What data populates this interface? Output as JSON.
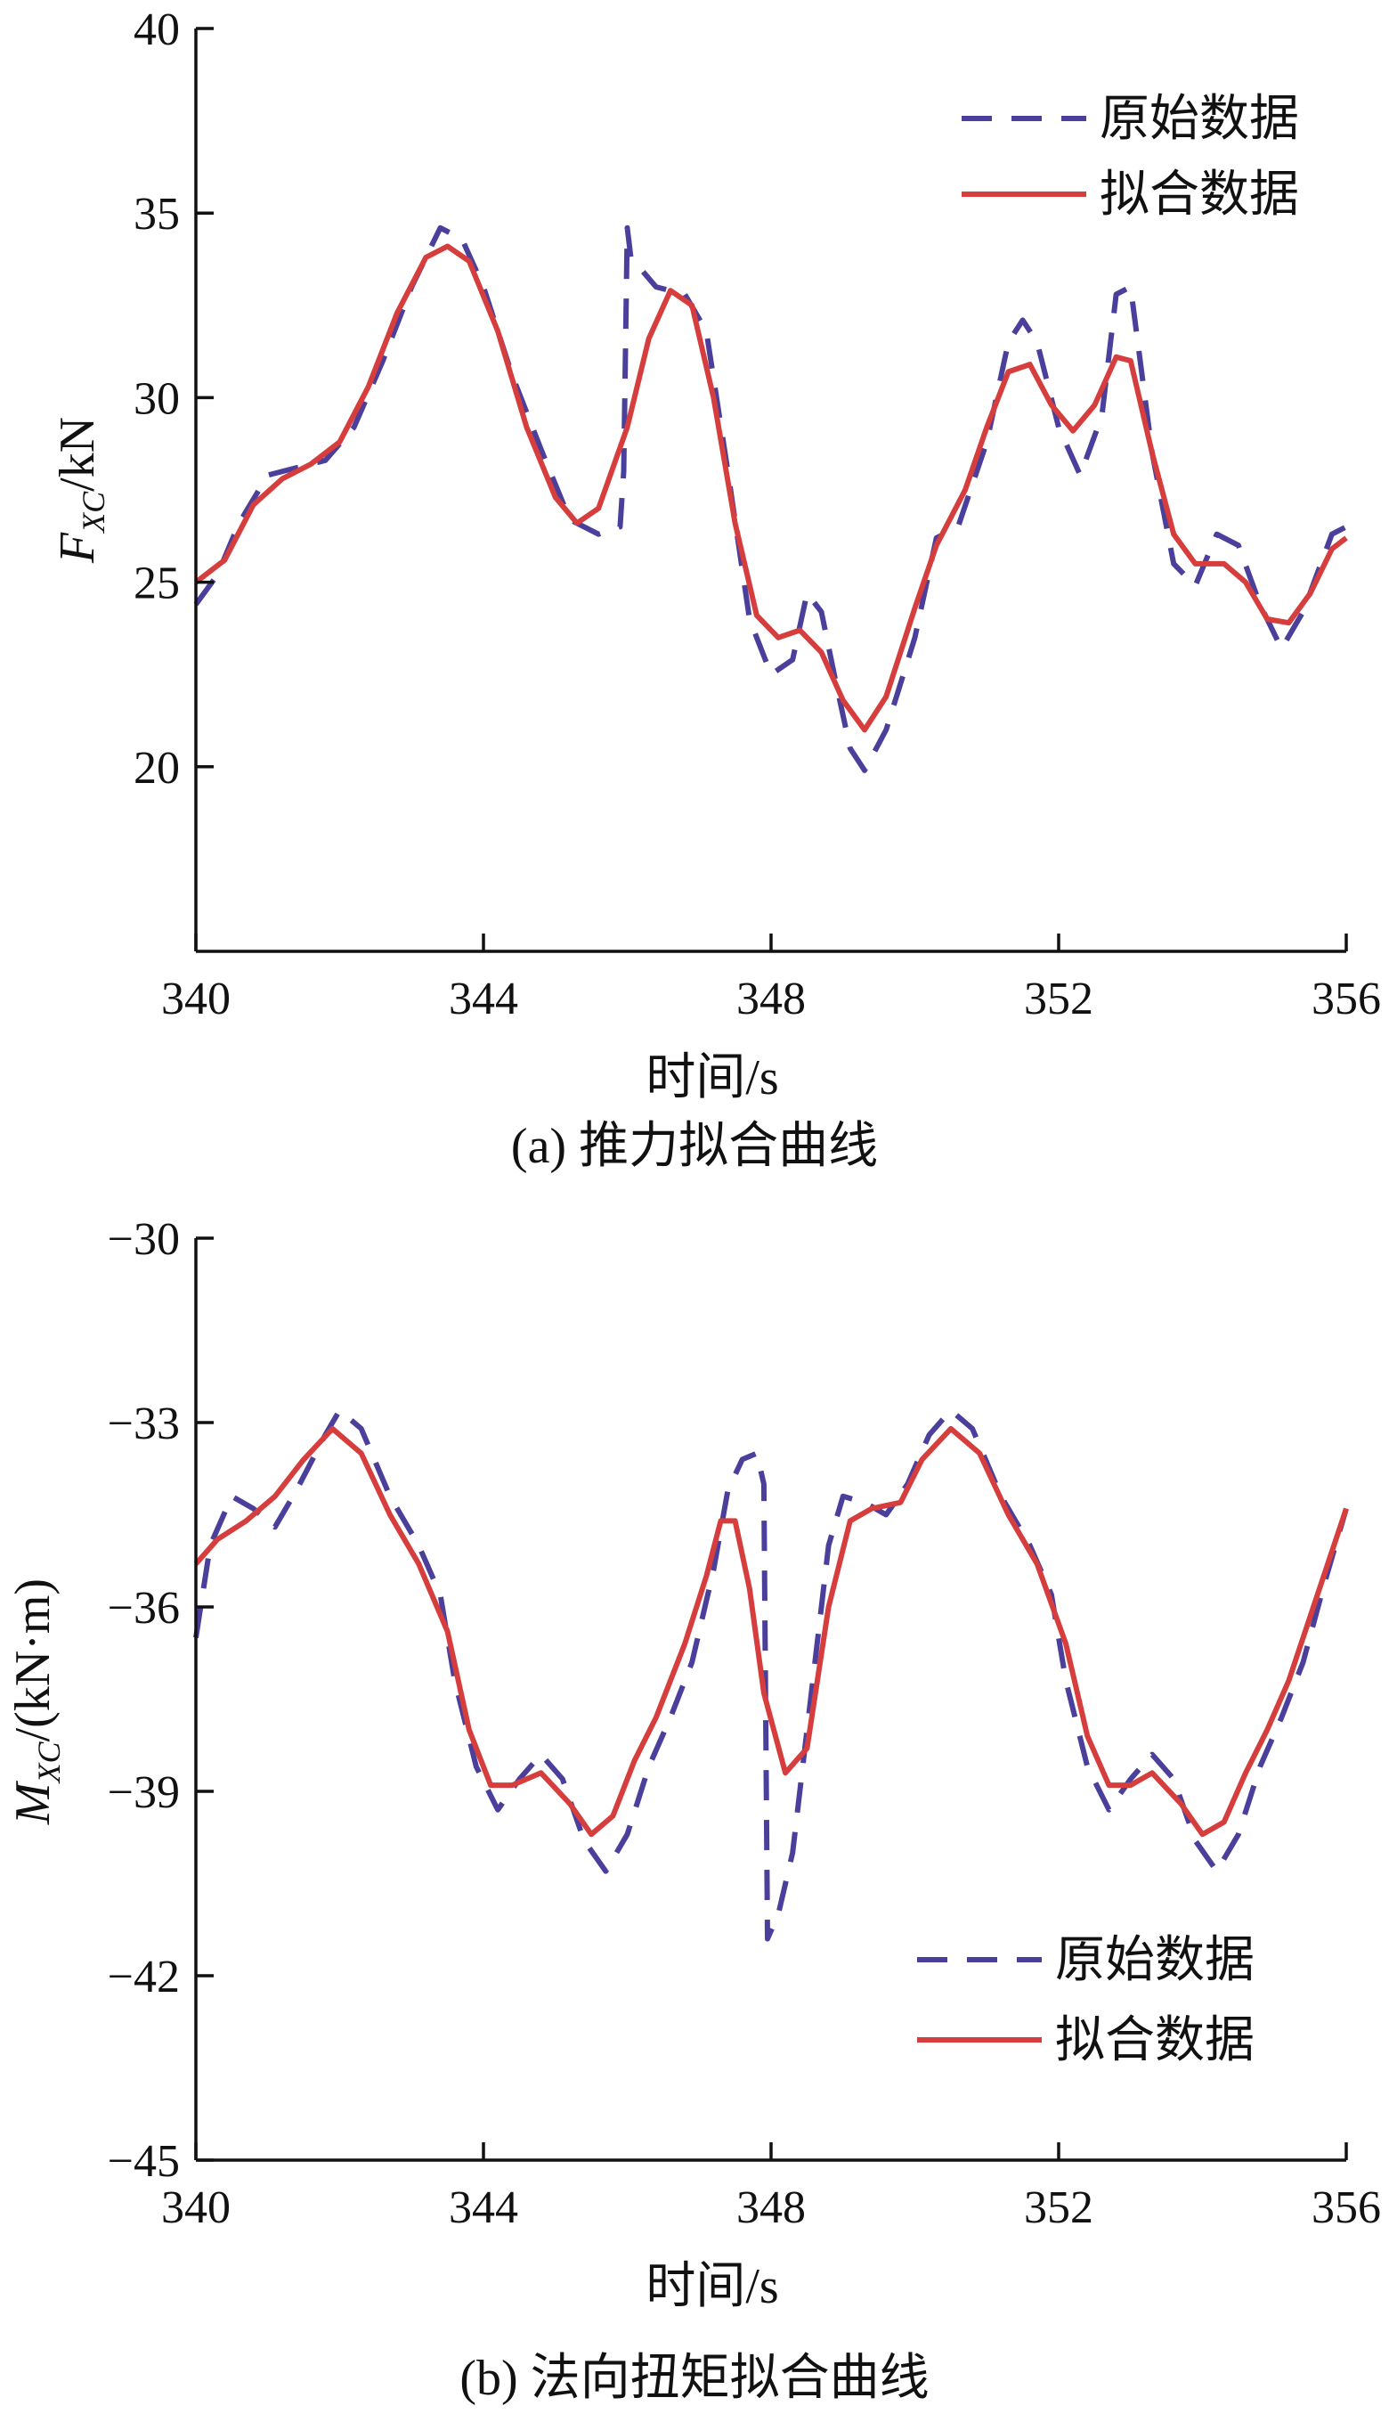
{
  "chart_data": [
    {
      "type": "line",
      "caption": "(a)  推力拟合曲线",
      "xlabel": "时间/s",
      "ylabel_main": "F",
      "ylabel_sub": "XC",
      "ylabel_unit": "/kN",
      "xlim": [
        340,
        356
      ],
      "ylim": [
        15,
        40
      ],
      "xticks": [
        340,
        344,
        348,
        352,
        356
      ],
      "yticks": [
        20,
        25,
        30,
        35,
        40
      ],
      "legend_position": "top-right",
      "series": [
        {
          "name": "原始数据",
          "style": "dashed",
          "color": "#4b3f9c",
          "points": [
            [
              340.0,
              24.4
            ],
            [
              340.3,
              25.2
            ],
            [
              340.6,
              26.6
            ],
            [
              341.0,
              27.9
            ],
            [
              341.4,
              28.1
            ],
            [
              341.8,
              28.3
            ],
            [
              342.2,
              29.2
            ],
            [
              342.6,
              31.0
            ],
            [
              343.0,
              33.0
            ],
            [
              343.4,
              34.6
            ],
            [
              343.7,
              34.3
            ],
            [
              344.0,
              33.0
            ],
            [
              344.4,
              30.6
            ],
            [
              344.8,
              28.6
            ],
            [
              345.2,
              26.7
            ],
            [
              345.6,
              26.3
            ],
            [
              345.9,
              26.5
            ],
            [
              345.95,
              28.0
            ],
            [
              346.0,
              34.6
            ],
            [
              346.05,
              33.8
            ],
            [
              346.4,
              33.0
            ],
            [
              346.8,
              32.8
            ],
            [
              347.1,
              31.8
            ],
            [
              347.4,
              28.0
            ],
            [
              347.7,
              24.0
            ],
            [
              348.0,
              22.5
            ],
            [
              348.3,
              22.9
            ],
            [
              348.5,
              24.7
            ],
            [
              348.7,
              24.2
            ],
            [
              348.9,
              22.3
            ],
            [
              349.1,
              20.5
            ],
            [
              349.3,
              19.9
            ],
            [
              349.6,
              21.0
            ],
            [
              350.0,
              23.5
            ],
            [
              350.3,
              26.2
            ],
            [
              350.6,
              26.5
            ],
            [
              351.0,
              28.8
            ],
            [
              351.3,
              31.5
            ],
            [
              351.5,
              32.1
            ],
            [
              351.7,
              31.5
            ],
            [
              352.0,
              29.2
            ],
            [
              352.3,
              27.9
            ],
            [
              352.6,
              29.5
            ],
            [
              352.8,
              32.8
            ],
            [
              353.0,
              33.0
            ],
            [
              353.3,
              28.5
            ],
            [
              353.6,
              25.5
            ],
            [
              353.9,
              24.9
            ],
            [
              354.2,
              26.3
            ],
            [
              354.5,
              26.0
            ],
            [
              354.8,
              24.4
            ],
            [
              355.1,
              23.2
            ],
            [
              355.4,
              24.2
            ],
            [
              355.8,
              26.3
            ],
            [
              356.0,
              26.5
            ]
          ]
        },
        {
          "name": "拟合数据",
          "style": "solid",
          "color": "#d63d3d",
          "points": [
            [
              340.0,
              25.0
            ],
            [
              340.4,
              25.6
            ],
            [
              340.8,
              27.1
            ],
            [
              341.2,
              27.8
            ],
            [
              341.6,
              28.2
            ],
            [
              342.0,
              28.8
            ],
            [
              342.4,
              30.3
            ],
            [
              342.8,
              32.3
            ],
            [
              343.2,
              33.8
            ],
            [
              343.5,
              34.1
            ],
            [
              343.8,
              33.7
            ],
            [
              344.2,
              31.8
            ],
            [
              344.6,
              29.2
            ],
            [
              345.0,
              27.3
            ],
            [
              345.3,
              26.6
            ],
            [
              345.6,
              27.0
            ],
            [
              346.0,
              29.2
            ],
            [
              346.3,
              31.6
            ],
            [
              346.6,
              32.9
            ],
            [
              346.9,
              32.5
            ],
            [
              347.2,
              30.0
            ],
            [
              347.5,
              26.6
            ],
            [
              347.8,
              24.1
            ],
            [
              348.1,
              23.5
            ],
            [
              348.4,
              23.7
            ],
            [
              348.7,
              23.1
            ],
            [
              349.0,
              21.8
            ],
            [
              349.3,
              21.0
            ],
            [
              349.6,
              21.9
            ],
            [
              350.0,
              24.3
            ],
            [
              350.3,
              26.0
            ],
            [
              350.7,
              27.5
            ],
            [
              351.0,
              29.2
            ],
            [
              351.3,
              30.7
            ],
            [
              351.6,
              30.9
            ],
            [
              351.9,
              29.8
            ],
            [
              352.2,
              29.1
            ],
            [
              352.5,
              29.8
            ],
            [
              352.8,
              31.1
            ],
            [
              353.0,
              31.0
            ],
            [
              353.3,
              28.5
            ],
            [
              353.6,
              26.3
            ],
            [
              353.9,
              25.5
            ],
            [
              354.3,
              25.5
            ],
            [
              354.6,
              25.0
            ],
            [
              354.9,
              24.0
            ],
            [
              355.2,
              23.9
            ],
            [
              355.5,
              24.7
            ],
            [
              355.8,
              25.9
            ],
            [
              356.0,
              26.2
            ]
          ]
        }
      ]
    },
    {
      "type": "line",
      "caption": "(b)  法向扭矩拟合曲线",
      "xlabel": "时间/s",
      "ylabel_main": "M",
      "ylabel_sub": "XC",
      "ylabel_unit": "/(kN·m)",
      "xlim": [
        340,
        356
      ],
      "ylim": [
        -45,
        -30
      ],
      "xticks": [
        340,
        344,
        348,
        352,
        356
      ],
      "yticks": [
        -45,
        -42,
        -39,
        -36,
        -33,
        -30
      ],
      "ytick_labels": [
        "−45",
        "−42",
        "−39",
        "−36",
        "−33",
        "−30"
      ],
      "legend_position": "bottom-right",
      "series": [
        {
          "name": "原始数据",
          "style": "dashed",
          "color": "#4b3f9c",
          "points": [
            [
              340.0,
              -36.5
            ],
            [
              340.2,
              -35.0
            ],
            [
              340.5,
              -34.2
            ],
            [
              340.8,
              -34.4
            ],
            [
              341.1,
              -34.7
            ],
            [
              341.4,
              -34.1
            ],
            [
              341.8,
              -33.2
            ],
            [
              342.0,
              -32.8
            ],
            [
              342.3,
              -33.1
            ],
            [
              342.7,
              -34.2
            ],
            [
              343.1,
              -35.0
            ],
            [
              343.4,
              -35.8
            ],
            [
              343.6,
              -37.2
            ],
            [
              343.9,
              -38.6
            ],
            [
              344.2,
              -39.3
            ],
            [
              344.5,
              -38.8
            ],
            [
              344.8,
              -38.4
            ],
            [
              345.1,
              -38.8
            ],
            [
              345.4,
              -39.8
            ],
            [
              345.7,
              -40.3
            ],
            [
              346.0,
              -39.7
            ],
            [
              346.3,
              -38.6
            ],
            [
              346.6,
              -37.8
            ],
            [
              346.9,
              -36.9
            ],
            [
              347.2,
              -35.4
            ],
            [
              347.4,
              -34.1
            ],
            [
              347.6,
              -33.6
            ],
            [
              347.8,
              -33.5
            ],
            [
              347.9,
              -34.0
            ],
            [
              347.95,
              -41.4
            ],
            [
              348.1,
              -41.0
            ],
            [
              348.3,
              -40.0
            ],
            [
              348.6,
              -37.0
            ],
            [
              348.8,
              -35.0
            ],
            [
              349.0,
              -34.2
            ],
            [
              349.3,
              -34.3
            ],
            [
              349.6,
              -34.5
            ],
            [
              349.9,
              -34.0
            ],
            [
              350.2,
              -33.2
            ],
            [
              350.5,
              -32.8
            ],
            [
              350.8,
              -33.1
            ],
            [
              351.2,
              -34.2
            ],
            [
              351.6,
              -35.0
            ],
            [
              351.9,
              -35.8
            ],
            [
              352.1,
              -37.2
            ],
            [
              352.4,
              -38.6
            ],
            [
              352.7,
              -39.3
            ],
            [
              353.0,
              -38.8
            ],
            [
              353.3,
              -38.4
            ],
            [
              353.6,
              -38.8
            ],
            [
              353.9,
              -39.8
            ],
            [
              354.2,
              -40.3
            ],
            [
              354.5,
              -39.7
            ],
            [
              354.8,
              -38.6
            ],
            [
              355.1,
              -37.8
            ],
            [
              355.4,
              -36.9
            ],
            [
              355.7,
              -35.6
            ],
            [
              356.0,
              -34.4
            ]
          ]
        },
        {
          "name": "拟合数据",
          "style": "solid",
          "color": "#d63d3d",
          "points": [
            [
              340.0,
              -35.3
            ],
            [
              340.3,
              -34.9
            ],
            [
              340.7,
              -34.6
            ],
            [
              341.1,
              -34.2
            ],
            [
              341.5,
              -33.6
            ],
            [
              341.9,
              -33.1
            ],
            [
              342.3,
              -33.5
            ],
            [
              342.7,
              -34.5
            ],
            [
              343.1,
              -35.3
            ],
            [
              343.5,
              -36.4
            ],
            [
              343.8,
              -38.0
            ],
            [
              344.1,
              -38.9
            ],
            [
              344.4,
              -38.9
            ],
            [
              344.8,
              -38.7
            ],
            [
              345.2,
              -39.2
            ],
            [
              345.5,
              -39.7
            ],
            [
              345.8,
              -39.4
            ],
            [
              346.1,
              -38.5
            ],
            [
              346.4,
              -37.8
            ],
            [
              346.8,
              -36.6
            ],
            [
              347.1,
              -35.5
            ],
            [
              347.3,
              -34.6
            ],
            [
              347.5,
              -34.6
            ],
            [
              347.7,
              -35.7
            ],
            [
              347.9,
              -37.4
            ],
            [
              348.2,
              -38.7
            ],
            [
              348.5,
              -38.3
            ],
            [
              348.8,
              -36.0
            ],
            [
              349.1,
              -34.6
            ],
            [
              349.4,
              -34.4
            ],
            [
              349.8,
              -34.3
            ],
            [
              350.1,
              -33.6
            ],
            [
              350.5,
              -33.1
            ],
            [
              350.9,
              -33.5
            ],
            [
              351.3,
              -34.5
            ],
            [
              351.7,
              -35.3
            ],
            [
              352.1,
              -36.6
            ],
            [
              352.4,
              -38.1
            ],
            [
              352.7,
              -38.9
            ],
            [
              353.0,
              -38.9
            ],
            [
              353.3,
              -38.7
            ],
            [
              353.7,
              -39.2
            ],
            [
              354.0,
              -39.7
            ],
            [
              354.3,
              -39.5
            ],
            [
              354.6,
              -38.7
            ],
            [
              354.9,
              -38.0
            ],
            [
              355.2,
              -37.2
            ],
            [
              355.6,
              -35.8
            ],
            [
              356.0,
              -34.4
            ]
          ]
        }
      ]
    }
  ]
}
